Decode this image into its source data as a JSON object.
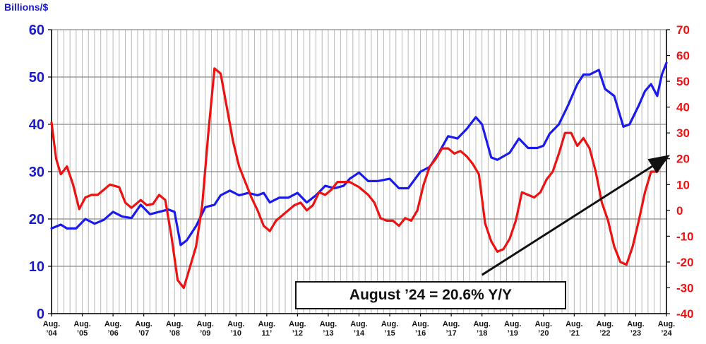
{
  "chart_data": {
    "type": "line",
    "title": "",
    "ylabel": "Billions/$",
    "annotation": "August ’24 = 20.6% Y/Y",
    "x_ticks": [
      [
        "Aug.",
        "’04"
      ],
      [
        "Aug.",
        "’05"
      ],
      [
        "Aug.",
        "’06"
      ],
      [
        "Aug.",
        "’07"
      ],
      [
        "Aug.",
        "’08"
      ],
      [
        "Aug.",
        "’09"
      ],
      [
        "Aug.",
        "’10"
      ],
      [
        "Aug.",
        "11’"
      ],
      [
        "Aug.",
        "’12"
      ],
      [
        "Aug.",
        "’13"
      ],
      [
        "Aug.",
        "’14"
      ],
      [
        "Aug.",
        "’15"
      ],
      [
        "Aug.",
        "’16"
      ],
      [
        "Aug.",
        "’17"
      ],
      [
        "Aug.",
        "’18"
      ],
      [
        "Aug.",
        "’19"
      ],
      [
        "Aug.",
        "’20"
      ],
      [
        "Aug.",
        "’21"
      ],
      [
        "Aug.",
        "’22"
      ],
      [
        "Aug.",
        "’23"
      ],
      [
        "Aug.",
        "’24"
      ]
    ],
    "xlim": [
      2004.6,
      2024.6
    ],
    "y_left": {
      "ylim": [
        0,
        60
      ],
      "ticks": [
        0,
        10,
        20,
        30,
        40,
        50,
        60
      ],
      "color": "#1a1acc"
    },
    "y_right": {
      "ylim": [
        -40,
        70
      ],
      "ticks": [
        -40,
        -30,
        -20,
        -10,
        0,
        10,
        20,
        30,
        40,
        50,
        60,
        70
      ],
      "color": "#ee1111"
    },
    "grid": "vertical-and-horizontal",
    "series": [
      {
        "axis": "left",
        "color": "#1a1aee",
        "points": [
          [
            2004.6,
            18.0
          ],
          [
            2004.9,
            18.8
          ],
          [
            2005.1,
            18.0
          ],
          [
            2005.4,
            18.0
          ],
          [
            2005.7,
            20.0
          ],
          [
            2006.0,
            19.0
          ],
          [
            2006.3,
            19.8
          ],
          [
            2006.6,
            21.5
          ],
          [
            2006.9,
            20.5
          ],
          [
            2007.2,
            20.2
          ],
          [
            2007.5,
            23.0
          ],
          [
            2007.8,
            21.0
          ],
          [
            2008.1,
            21.5
          ],
          [
            2008.4,
            22.0
          ],
          [
            2008.6,
            21.5
          ],
          [
            2008.8,
            14.5
          ],
          [
            2009.0,
            15.5
          ],
          [
            2009.3,
            18.5
          ],
          [
            2009.6,
            22.5
          ],
          [
            2009.9,
            23.0
          ],
          [
            2010.1,
            25.0
          ],
          [
            2010.4,
            26.0
          ],
          [
            2010.7,
            25.0
          ],
          [
            2011.0,
            25.5
          ],
          [
            2011.3,
            25.0
          ],
          [
            2011.5,
            25.5
          ],
          [
            2011.7,
            23.5
          ],
          [
            2012.0,
            24.5
          ],
          [
            2012.3,
            24.5
          ],
          [
            2012.6,
            25.5
          ],
          [
            2012.9,
            23.5
          ],
          [
            2013.2,
            25.0
          ],
          [
            2013.5,
            27.0
          ],
          [
            2013.8,
            26.5
          ],
          [
            2014.1,
            27.0
          ],
          [
            2014.3,
            28.5
          ],
          [
            2014.6,
            29.8
          ],
          [
            2014.9,
            28.0
          ],
          [
            2015.2,
            28.0
          ],
          [
            2015.6,
            28.5
          ],
          [
            2015.9,
            26.5
          ],
          [
            2016.2,
            26.5
          ],
          [
            2016.6,
            30.0
          ],
          [
            2016.9,
            31.0
          ],
          [
            2017.2,
            34.0
          ],
          [
            2017.5,
            37.5
          ],
          [
            2017.8,
            37.0
          ],
          [
            2018.1,
            39.0
          ],
          [
            2018.4,
            41.5
          ],
          [
            2018.6,
            40.0
          ],
          [
            2018.9,
            33.0
          ],
          [
            2019.1,
            32.5
          ],
          [
            2019.5,
            34.0
          ],
          [
            2019.8,
            37.0
          ],
          [
            2020.1,
            35.0
          ],
          [
            2020.4,
            35.0
          ],
          [
            2020.6,
            35.5
          ],
          [
            2020.8,
            38.0
          ],
          [
            2021.1,
            40.0
          ],
          [
            2021.4,
            44.0
          ],
          [
            2021.7,
            48.5
          ],
          [
            2021.9,
            50.5
          ],
          [
            2022.1,
            50.5
          ],
          [
            2022.4,
            51.5
          ],
          [
            2022.6,
            47.5
          ],
          [
            2022.9,
            46.0
          ],
          [
            2023.2,
            39.5
          ],
          [
            2023.4,
            40.0
          ],
          [
            2023.7,
            44.0
          ],
          [
            2023.9,
            47.0
          ],
          [
            2024.1,
            48.5
          ],
          [
            2024.3,
            46.0
          ],
          [
            2024.45,
            50.5
          ],
          [
            2024.6,
            53.0
          ]
        ]
      },
      {
        "axis": "right",
        "color": "#ee1111",
        "points": [
          [
            2004.6,
            34.0
          ],
          [
            2004.75,
            20.0
          ],
          [
            2004.9,
            14.0
          ],
          [
            2005.1,
            17.0
          ],
          [
            2005.3,
            10.0
          ],
          [
            2005.5,
            0.5
          ],
          [
            2005.7,
            5.0
          ],
          [
            2005.9,
            6.0
          ],
          [
            2006.1,
            6.0
          ],
          [
            2006.3,
            8.0
          ],
          [
            2006.5,
            10.0
          ],
          [
            2006.8,
            9.0
          ],
          [
            2007.0,
            3.0
          ],
          [
            2007.2,
            1.0
          ],
          [
            2007.5,
            4.0
          ],
          [
            2007.7,
            2.0
          ],
          [
            2007.9,
            2.5
          ],
          [
            2008.1,
            6.0
          ],
          [
            2008.3,
            4.0
          ],
          [
            2008.5,
            -10.0
          ],
          [
            2008.7,
            -27.0
          ],
          [
            2008.9,
            -30.0
          ],
          [
            2009.1,
            -22.0
          ],
          [
            2009.3,
            -14.0
          ],
          [
            2009.5,
            2.0
          ],
          [
            2009.7,
            30.0
          ],
          [
            2009.9,
            55.0
          ],
          [
            2010.1,
            53.0
          ],
          [
            2010.3,
            40.0
          ],
          [
            2010.5,
            27.0
          ],
          [
            2010.7,
            17.0
          ],
          [
            2010.9,
            11.0
          ],
          [
            2011.1,
            5.0
          ],
          [
            2011.3,
            0.0
          ],
          [
            2011.5,
            -6.0
          ],
          [
            2011.7,
            -8.0
          ],
          [
            2011.9,
            -4.0
          ],
          [
            2012.1,
            -2.0
          ],
          [
            2012.3,
            0.0
          ],
          [
            2012.5,
            2.0
          ],
          [
            2012.7,
            3.0
          ],
          [
            2012.9,
            0.0
          ],
          [
            2013.1,
            2.0
          ],
          [
            2013.3,
            7.0
          ],
          [
            2013.5,
            6.0
          ],
          [
            2013.7,
            8.0
          ],
          [
            2013.9,
            11.0
          ],
          [
            2014.1,
            11.0
          ],
          [
            2014.3,
            11.0
          ],
          [
            2014.6,
            9.0
          ],
          [
            2014.9,
            6.0
          ],
          [
            2015.1,
            3.0
          ],
          [
            2015.3,
            -3.0
          ],
          [
            2015.5,
            -4.0
          ],
          [
            2015.7,
            -4.0
          ],
          [
            2015.9,
            -6.0
          ],
          [
            2016.1,
            -3.0
          ],
          [
            2016.3,
            -4.0
          ],
          [
            2016.5,
            0.0
          ],
          [
            2016.7,
            10.0
          ],
          [
            2016.9,
            17.0
          ],
          [
            2017.1,
            20.0
          ],
          [
            2017.3,
            24.0
          ],
          [
            2017.5,
            24.0
          ],
          [
            2017.7,
            22.0
          ],
          [
            2017.9,
            23.0
          ],
          [
            2018.1,
            21.0
          ],
          [
            2018.3,
            18.0
          ],
          [
            2018.5,
            14.0
          ],
          [
            2018.7,
            -5.0
          ],
          [
            2018.9,
            -12.0
          ],
          [
            2019.1,
            -16.0
          ],
          [
            2019.3,
            -15.0
          ],
          [
            2019.5,
            -11.0
          ],
          [
            2019.7,
            -4.0
          ],
          [
            2019.9,
            7.0
          ],
          [
            2020.1,
            6.0
          ],
          [
            2020.3,
            5.0
          ],
          [
            2020.5,
            7.0
          ],
          [
            2020.7,
            12.0
          ],
          [
            2020.9,
            15.0
          ],
          [
            2021.1,
            22.0
          ],
          [
            2021.3,
            30.0
          ],
          [
            2021.5,
            30.0
          ],
          [
            2021.7,
            25.0
          ],
          [
            2021.9,
            28.0
          ],
          [
            2022.1,
            24.0
          ],
          [
            2022.3,
            15.0
          ],
          [
            2022.5,
            3.0
          ],
          [
            2022.7,
            -4.0
          ],
          [
            2022.9,
            -14.0
          ],
          [
            2023.1,
            -20.0
          ],
          [
            2023.3,
            -21.0
          ],
          [
            2023.5,
            -14.0
          ],
          [
            2023.7,
            -4.0
          ],
          [
            2023.9,
            7.0
          ],
          [
            2024.1,
            15.0
          ],
          [
            2024.3,
            15.0
          ],
          [
            2024.5,
            19.0
          ],
          [
            2024.6,
            20.6
          ]
        ]
      }
    ],
    "trend_arrow": {
      "from": [
        2018.6,
        -25.0
      ],
      "to": [
        2024.6,
        20.6
      ]
    }
  }
}
